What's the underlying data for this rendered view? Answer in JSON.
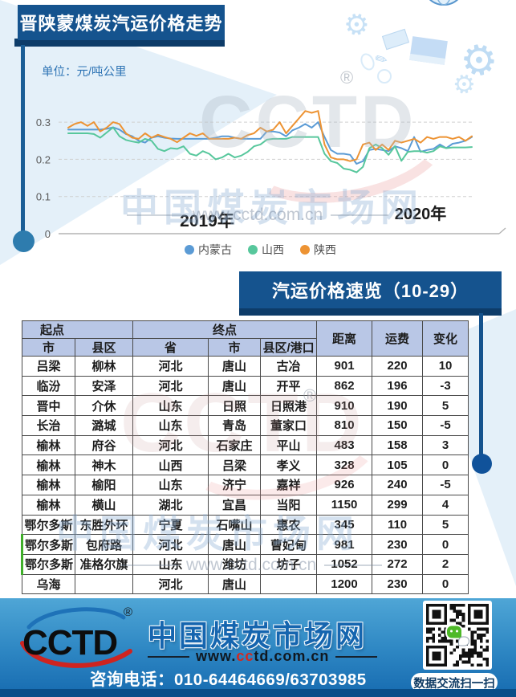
{
  "page": {
    "title_banner": "晋陕蒙煤炭汽运价格走势",
    "unit_label": "单位：元/吨公里",
    "table_banner": "汽运价格速览（10-29）"
  },
  "icons": {
    "gear": "⚙",
    "pen": "✎",
    "registered": "®"
  },
  "chart_data": {
    "type": "line",
    "title": "晋陕蒙煤炭汽运价格走势",
    "unit": "元/吨公里",
    "x_axis_labels": [
      "2019年",
      "2020年"
    ],
    "y_ticks": [
      0,
      0.1,
      0.2,
      0.3
    ],
    "ylim": [
      0,
      0.34
    ],
    "grid": "horizontal-dashed",
    "legend_position": "bottom",
    "series": [
      {
        "name": "内蒙古",
        "color": "#5B9BD5",
        "values": [
          0.28,
          0.28,
          0.28,
          0.28,
          0.28,
          0.28,
          0.282,
          0.286,
          0.28,
          0.268,
          0.262,
          0.25,
          0.245,
          0.258,
          0.262,
          0.258,
          0.256,
          0.255,
          0.255,
          0.255,
          0.255,
          0.255,
          0.255,
          0.258,
          0.262,
          0.262,
          0.258,
          0.255,
          0.255,
          0.255,
          0.255,
          0.275,
          0.275,
          0.272,
          0.262,
          0.278,
          0.285,
          0.295,
          0.285,
          0.3,
          0.26,
          0.225,
          0.215,
          0.215,
          0.212,
          0.188,
          0.195,
          0.225,
          0.228,
          0.225,
          0.222,
          0.235,
          0.23,
          0.222,
          0.26,
          0.22,
          0.225,
          0.228,
          0.24,
          0.23,
          0.242,
          0.245,
          0.25,
          0.26
        ]
      },
      {
        "name": "山西",
        "color": "#57C79C",
        "values": [
          0.27,
          0.27,
          0.27,
          0.27,
          0.268,
          0.258,
          0.272,
          0.286,
          0.262,
          0.252,
          0.248,
          0.245,
          0.255,
          0.25,
          0.228,
          0.222,
          0.23,
          0.228,
          0.235,
          0.215,
          0.21,
          0.222,
          0.215,
          0.2,
          0.205,
          0.215,
          0.205,
          0.21,
          0.22,
          0.235,
          0.24,
          0.253,
          0.255,
          0.255,
          0.255,
          0.26,
          0.26,
          0.26,
          0.26,
          0.26,
          0.215,
          0.195,
          0.19,
          0.175,
          0.172,
          0.165,
          0.18,
          0.23,
          0.24,
          0.23,
          0.212,
          0.235,
          0.196,
          0.22,
          0.222,
          0.222,
          0.218,
          0.222,
          0.235,
          0.23,
          0.232,
          0.232,
          0.232,
          0.233
        ]
      },
      {
        "name": "陕西",
        "color": "#ED9333",
        "values": [
          0.285,
          0.295,
          0.3,
          0.29,
          0.3,
          0.275,
          0.285,
          0.3,
          0.295,
          0.27,
          0.258,
          0.255,
          0.27,
          0.258,
          0.266,
          0.26,
          0.255,
          0.246,
          0.258,
          0.27,
          0.263,
          0.27,
          0.255,
          0.255,
          0.255,
          0.255,
          0.258,
          0.255,
          0.265,
          0.27,
          0.285,
          0.275,
          0.28,
          0.3,
          0.27,
          0.29,
          0.31,
          0.33,
          0.325,
          0.33,
          0.24,
          0.205,
          0.2,
          0.2,
          0.195,
          0.2,
          0.24,
          0.245,
          0.225,
          0.24,
          0.225,
          0.25,
          0.245,
          0.25,
          0.255,
          0.245,
          0.26,
          0.255,
          0.26,
          0.26,
          0.255,
          0.26,
          0.25,
          0.262
        ]
      }
    ]
  },
  "table": {
    "header": {
      "origin_group": "起点",
      "dest_group": "终点",
      "origin_cols": [
        "市",
        "县区"
      ],
      "dest_cols": [
        "省",
        "市",
        "县区/港口"
      ],
      "metric_cols": [
        "距离",
        "运费",
        "变化"
      ]
    },
    "rows": [
      [
        "吕梁",
        "柳林",
        "河北",
        "唐山",
        "古冶",
        "901",
        "220",
        "10"
      ],
      [
        "临汾",
        "安泽",
        "河北",
        "唐山",
        "开平",
        "862",
        "196",
        "-3"
      ],
      [
        "晋中",
        "介休",
        "山东",
        "日照",
        "日照港",
        "910",
        "190",
        "5"
      ],
      [
        "长治",
        "潞城",
        "山东",
        "青岛",
        "董家口",
        "810",
        "150",
        "-5"
      ],
      [
        "榆林",
        "府谷",
        "河北",
        "石家庄",
        "平山",
        "483",
        "158",
        "3"
      ],
      [
        "榆林",
        "神木",
        "山西",
        "吕梁",
        "孝义",
        "328",
        "105",
        "0"
      ],
      [
        "榆林",
        "榆阳",
        "山东",
        "济宁",
        "嘉祥",
        "926",
        "240",
        "-5"
      ],
      [
        "榆林",
        "横山",
        "湖北",
        "宜昌",
        "当阳",
        "1150",
        "299",
        "4"
      ],
      [
        "鄂尔多斯",
        "东胜外环",
        "宁夏",
        "石嘴山",
        "惠农",
        "345",
        "110",
        "5"
      ],
      [
        "鄂尔多斯",
        "包府路",
        "河北",
        "唐山",
        "曹妃甸",
        "981",
        "230",
        "0"
      ],
      [
        "鄂尔多斯",
        "准格尔旗",
        "山东",
        "潍坊",
        "坊子",
        "1052",
        "272",
        "2"
      ],
      [
        "乌海",
        "",
        "河北",
        "唐山",
        "",
        "1200",
        "230",
        "0"
      ]
    ]
  },
  "watermark": {
    "brand": "CCTD",
    "site_name": "中国煤炭市场网",
    "site_url": "www.cctd.com.cn"
  },
  "footer": {
    "logo_text": "CCTD",
    "registered_mark": "®",
    "site_name": "中国煤炭市场网",
    "site_url": "www.cctd.com.cn",
    "url_www": "www.",
    "url_cc": "cc",
    "url_rest": "td.com.cn",
    "phone_line": "咨询电话：010-64464669/63703985",
    "qr_caption": "数据交流扫一扫"
  },
  "colors": {
    "banner_blue": "#15538E",
    "banner_shadow": "#0D3C69",
    "table_header_fill": "#B9C7E6",
    "footer_gradient_top": "#4FA6D6",
    "footer_gradient_bottom": "#1A6FB3",
    "footer_strip": "#0A4E88",
    "accent_red": "#CE2420",
    "unit_text_blue": "#2E74B5"
  }
}
